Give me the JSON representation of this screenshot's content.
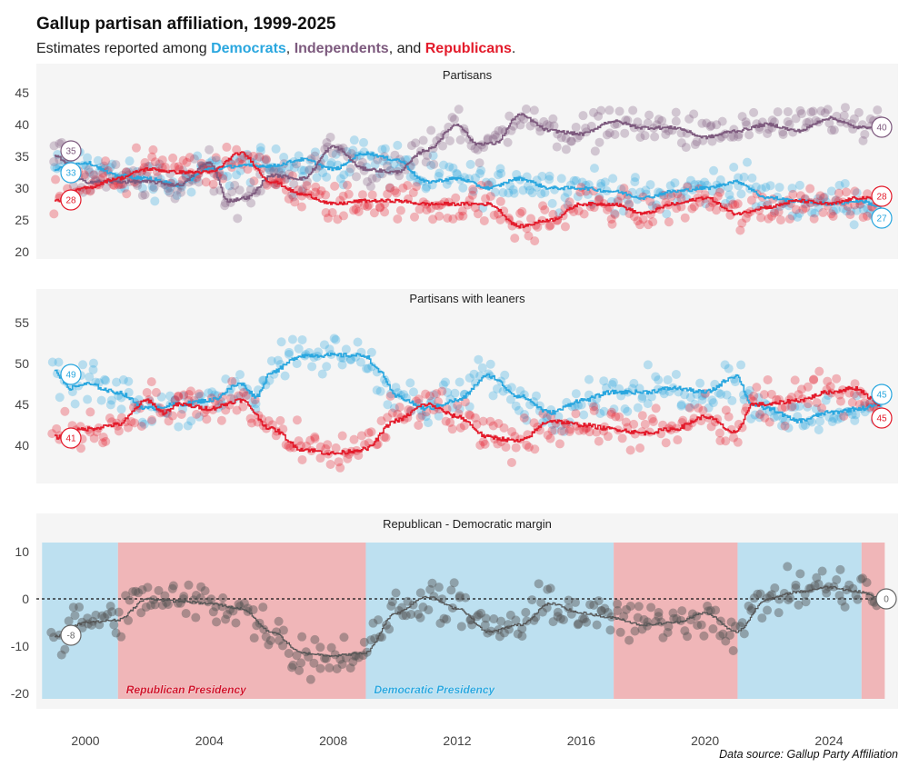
{
  "header": {
    "title": "Gallup partisan affiliation, 1999-2025",
    "subtitle_prefix": "Estimates reported among ",
    "dem": "Democrats",
    "sep1": ", ",
    "ind": "Independents",
    "sep2": ", and ",
    "rep": "Republicans",
    "suffix": "."
  },
  "colors": {
    "dem": "#2aa7df",
    "ind": "#7d5a7e",
    "rep": "#e31b2b",
    "margin": "#555555",
    "dem_band": "#bde0f0",
    "rep_band": "#f0b6b8",
    "panel_bg": "#f5f5f5"
  },
  "source": "Data source: Gallup Party Affiliation",
  "x_axis": {
    "ticks": [
      "2000",
      "2004",
      "2008",
      "2012",
      "2016",
      "2020",
      "2024"
    ]
  },
  "chart_data": [
    {
      "type": "line",
      "title": "Partisans",
      "ylim": [
        19,
        48
      ],
      "yticks": [
        "45",
        "40",
        "35",
        "30",
        "25",
        "20"
      ],
      "series": [
        {
          "name": "Democrats",
          "key": "dem",
          "start_label": "33",
          "end_label": "27",
          "trend": [
            [
              1999,
              33
            ],
            [
              2000,
              34
            ],
            [
              2001,
              32
            ],
            [
              2002,
              31.5
            ],
            [
              2003,
              30.5
            ],
            [
              2004,
              33
            ],
            [
              2005,
              33.5
            ],
            [
              2006,
              33.5
            ],
            [
              2007,
              34.5
            ],
            [
              2008,
              33
            ],
            [
              2009,
              35.5
            ],
            [
              2010,
              34.5
            ],
            [
              2011,
              31
            ],
            [
              2012,
              31.5
            ],
            [
              2013,
              30
            ],
            [
              2014,
              31.5
            ],
            [
              2015,
              30
            ],
            [
              2016,
              30
            ],
            [
              2017,
              29.5
            ],
            [
              2018,
              28.5
            ],
            [
              2019,
              29.5
            ],
            [
              2020,
              30
            ],
            [
              2021,
              31
            ],
            [
              2022,
              28.5
            ],
            [
              2023,
              28
            ],
            [
              2024,
              27.5
            ],
            [
              2025,
              28
            ],
            [
              2025.7,
              27
            ]
          ]
        },
        {
          "name": "Independents",
          "key": "ind",
          "start_label": "35",
          "end_label": "40",
          "trend": [
            [
              1999,
              35
            ],
            [
              2000,
              31
            ],
            [
              2001,
              31
            ],
            [
              2002,
              31
            ],
            [
              2003,
              30.5
            ],
            [
              2004,
              34
            ],
            [
              2004.6,
              28
            ],
            [
              2005.2,
              28.5
            ],
            [
              2006,
              32
            ],
            [
              2007,
              31.5
            ],
            [
              2008,
              36.5
            ],
            [
              2009,
              33
            ],
            [
              2010,
              32.5
            ],
            [
              2011,
              36
            ],
            [
              2012,
              40
            ],
            [
              2012.6,
              37
            ],
            [
              2013.2,
              37
            ],
            [
              2014,
              41.5
            ],
            [
              2015,
              39
            ],
            [
              2016,
              38.5
            ],
            [
              2017,
              40.5
            ],
            [
              2018,
              39.5
            ],
            [
              2019,
              39.5
            ],
            [
              2020,
              38
            ],
            [
              2021,
              39
            ],
            [
              2022,
              40
            ],
            [
              2023,
              39
            ],
            [
              2024,
              41
            ],
            [
              2025,
              39.5
            ],
            [
              2025.7,
              40
            ]
          ]
        },
        {
          "name": "Republicans",
          "key": "rep",
          "start_label": "28",
          "end_label": "28",
          "trend": [
            [
              1999,
              28
            ],
            [
              2000,
              30
            ],
            [
              2001,
              31.5
            ],
            [
              2002,
              33
            ],
            [
              2003,
              32.5
            ],
            [
              2004,
              32.5
            ],
            [
              2005,
              35.5
            ],
            [
              2006,
              31
            ],
            [
              2007,
              29
            ],
            [
              2008,
              27.5
            ],
            [
              2009,
              28
            ],
            [
              2010,
              28
            ],
            [
              2011,
              27.5
            ],
            [
              2012,
              27.5
            ],
            [
              2013,
              27.5
            ],
            [
              2014,
              24
            ],
            [
              2015,
              25
            ],
            [
              2016,
              27.5
            ],
            [
              2017,
              27.5
            ],
            [
              2018,
              26
            ],
            [
              2019,
              27.5
            ],
            [
              2020,
              28.5
            ],
            [
              2021,
              26
            ],
            [
              2022,
              27
            ],
            [
              2023,
              28
            ],
            [
              2024,
              27.5
            ],
            [
              2025,
              28.5
            ],
            [
              2025.7,
              28
            ]
          ]
        }
      ]
    },
    {
      "type": "line",
      "title": "Partisans with leaners",
      "ylim": [
        36,
        57
      ],
      "yticks": [
        "55",
        "50",
        "45",
        "40"
      ],
      "series": [
        {
          "name": "Democrats",
          "key": "dem",
          "start_label": "49",
          "end_label": "45",
          "trend": [
            [
              1999,
              49
            ],
            [
              1999.5,
              47
            ],
            [
              2000,
              47.5
            ],
            [
              2001,
              46.5
            ],
            [
              2002,
              44.5
            ],
            [
              2003,
              45
            ],
            [
              2004,
              45.5
            ],
            [
              2005,
              47.5
            ],
            [
              2005.5,
              46
            ],
            [
              2006,
              49
            ],
            [
              2007,
              51
            ],
            [
              2008,
              51
            ],
            [
              2009,
              51
            ],
            [
              2009.5,
              49
            ],
            [
              2010,
              46
            ],
            [
              2011,
              44.5
            ],
            [
              2012,
              45.5
            ],
            [
              2013,
              48.5
            ],
            [
              2014,
              46
            ],
            [
              2015,
              44
            ],
            [
              2016,
              45.5
            ],
            [
              2017,
              46.5
            ],
            [
              2018,
              46.5
            ],
            [
              2019,
              47
            ],
            [
              2020,
              46.5
            ],
            [
              2021,
              48.5
            ],
            [
              2021.5,
              45
            ],
            [
              2022,
              44.5
            ],
            [
              2023,
              43
            ],
            [
              2024,
              44
            ],
            [
              2025,
              44.5
            ],
            [
              2025.7,
              45
            ]
          ]
        },
        {
          "name": "Republicans",
          "key": "rep",
          "start_label": "41",
          "end_label": "45",
          "trend": [
            [
              1999,
              41
            ],
            [
              2000,
              42
            ],
            [
              2001,
              42.5
            ],
            [
              2002,
              45.5
            ],
            [
              2002.5,
              44
            ],
            [
              2003,
              45
            ],
            [
              2004,
              44.5
            ],
            [
              2005,
              45.5
            ],
            [
              2006,
              42
            ],
            [
              2007,
              39.5
            ],
            [
              2008,
              39
            ],
            [
              2009,
              39.5
            ],
            [
              2010,
              43
            ],
            [
              2011,
              45
            ],
            [
              2012,
              43.5
            ],
            [
              2013,
              41
            ],
            [
              2014,
              40.5
            ],
            [
              2015,
              43
            ],
            [
              2016,
              42.5
            ],
            [
              2017,
              42
            ],
            [
              2018,
              41.5
            ],
            [
              2019,
              42
            ],
            [
              2020,
              43.5
            ],
            [
              2021,
              41.5
            ],
            [
              2021.5,
              45
            ],
            [
              2022,
              45
            ],
            [
              2023,
              45.5
            ],
            [
              2024,
              46.5
            ],
            [
              2024.8,
              47
            ],
            [
              2025.7,
              45
            ]
          ]
        }
      ]
    },
    {
      "type": "line",
      "title": "Republican - Democratic margin",
      "ylim": [
        -21,
        12
      ],
      "yticks": [
        "10",
        "0",
        "-10",
        "-20"
      ],
      "reference_line": 0,
      "presidency_bands": [
        {
          "party": "dem",
          "from": 1998.6,
          "to": 2001.05,
          "label": ""
        },
        {
          "party": "rep",
          "from": 2001.05,
          "to": 2009.05,
          "label": "Republican Presidency"
        },
        {
          "party": "dem",
          "from": 2009.05,
          "to": 2017.05,
          "label": "Democratic Presidency"
        },
        {
          "party": "rep",
          "from": 2017.05,
          "to": 2021.05,
          "label": ""
        },
        {
          "party": "dem",
          "from": 2021.05,
          "to": 2025.05,
          "label": ""
        },
        {
          "party": "rep",
          "from": 2025.05,
          "to": 2025.8,
          "label": ""
        }
      ],
      "series": [
        {
          "key": "margin",
          "start_label": "-8",
          "end_label": "0",
          "trend": [
            [
              1999,
              -8
            ],
            [
              2000,
              -5
            ],
            [
              2001,
              -4.5
            ],
            [
              2002,
              0
            ],
            [
              2003,
              -0.5
            ],
            [
              2004,
              -1
            ],
            [
              2005,
              -2
            ],
            [
              2006,
              -7
            ],
            [
              2007,
              -11.5
            ],
            [
              2008,
              -12
            ],
            [
              2009,
              -11.5
            ],
            [
              2010,
              -3
            ],
            [
              2011,
              0.5
            ],
            [
              2012,
              -2
            ],
            [
              2013,
              -7
            ],
            [
              2014,
              -5.5
            ],
            [
              2015,
              -1
            ],
            [
              2016,
              -3
            ],
            [
              2017,
              -4
            ],
            [
              2018,
              -5.5
            ],
            [
              2019,
              -5
            ],
            [
              2020,
              -3
            ],
            [
              2021,
              -7
            ],
            [
              2022,
              0
            ],
            [
              2023,
              1.5
            ],
            [
              2024,
              2.5
            ],
            [
              2025,
              1.5
            ],
            [
              2025.7,
              0
            ]
          ]
        }
      ]
    }
  ]
}
